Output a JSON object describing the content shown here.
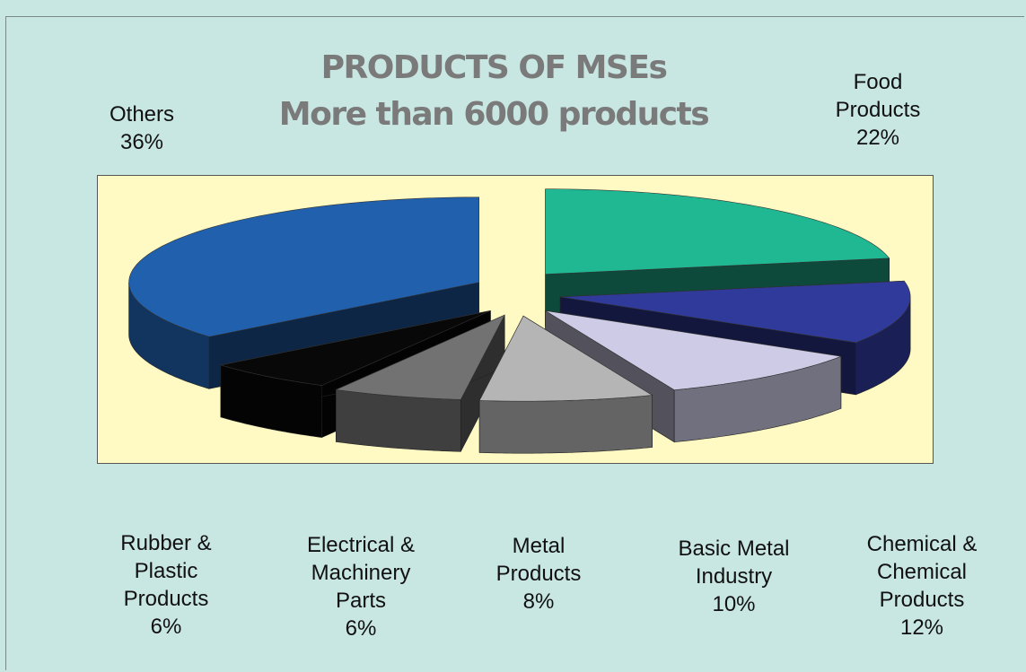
{
  "chart_data": {
    "type": "pie",
    "title": "PRODUCTS OF MSEs",
    "subtitle": "More than 6000 products",
    "slices": [
      {
        "label_lines": [
          "Food",
          "Products"
        ],
        "value_label": "22%",
        "value": 22,
        "legend_color": "#16d338",
        "slice_color": "#20b893"
      },
      {
        "label_lines": [
          "Chemical &",
          "Chemical",
          "Products"
        ],
        "value_label": "12%",
        "value": 12,
        "legend_color": "#4a7ee8",
        "slice_color": "#2f3a9a"
      },
      {
        "label_lines": [
          "Basic Metal",
          "Industry"
        ],
        "value_label": "10%",
        "value": 10,
        "legend_color": "#cfa8f5",
        "slice_color": "#cdcbe6"
      },
      {
        "label_lines": [
          "Metal",
          "Products"
        ],
        "value_label": "8%",
        "value": 8,
        "legend_color": "#c4c4c4",
        "slice_color": "#b5b5b5"
      },
      {
        "label_lines": [
          "Electrical &",
          "Machinery",
          "Parts"
        ],
        "value_label": "6%",
        "value": 6,
        "legend_color": "#7a7a7a",
        "slice_color": "#727272"
      },
      {
        "label_lines": [
          "Rubber &",
          "Plastic",
          "Products"
        ],
        "value_label": "6%",
        "value": 6,
        "legend_color": "#000000",
        "slice_color": "#080808"
      },
      {
        "label_lines": [
          "Others"
        ],
        "value_label": "36%",
        "value": 36,
        "legend_color": "#1464d2",
        "slice_color": "#2160ad"
      }
    ],
    "plot_background": "#fff9c4",
    "page_background": "#c8e6e2"
  }
}
